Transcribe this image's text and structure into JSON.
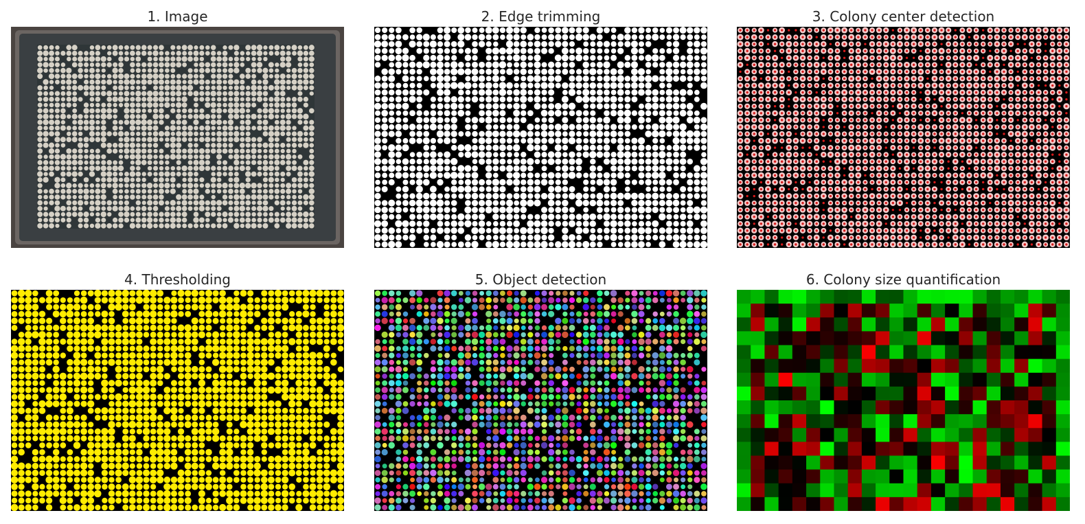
{
  "figure": {
    "panels": [
      {
        "title": "1. Image",
        "render": "photo",
        "colors": {
          "tray": "#4a4441",
          "agar": "#2f3638",
          "colony": "#d6d1c6"
        }
      },
      {
        "title": "2. Edge trimming",
        "render": "binary",
        "colors": {
          "bg": "#000000",
          "colony": "#ffffff"
        }
      },
      {
        "title": "3. Colony center detection",
        "render": "centers",
        "colors": {
          "bg": "#000000",
          "colony": "#f2c9c9",
          "center": "#d61a1a"
        }
      },
      {
        "title": "4. Thresholding",
        "render": "threshold",
        "colors": {
          "bg": "#000000",
          "colony": "#ffec00"
        }
      },
      {
        "title": "5. Object detection",
        "render": "objects",
        "colors": {
          "bg": "#000000"
        }
      },
      {
        "title": "6. Colony size quantification",
        "render": "heatmap",
        "colors": {
          "low": "#ff0000",
          "mid": "#000000",
          "high": "#00ff00"
        }
      }
    ]
  }
}
